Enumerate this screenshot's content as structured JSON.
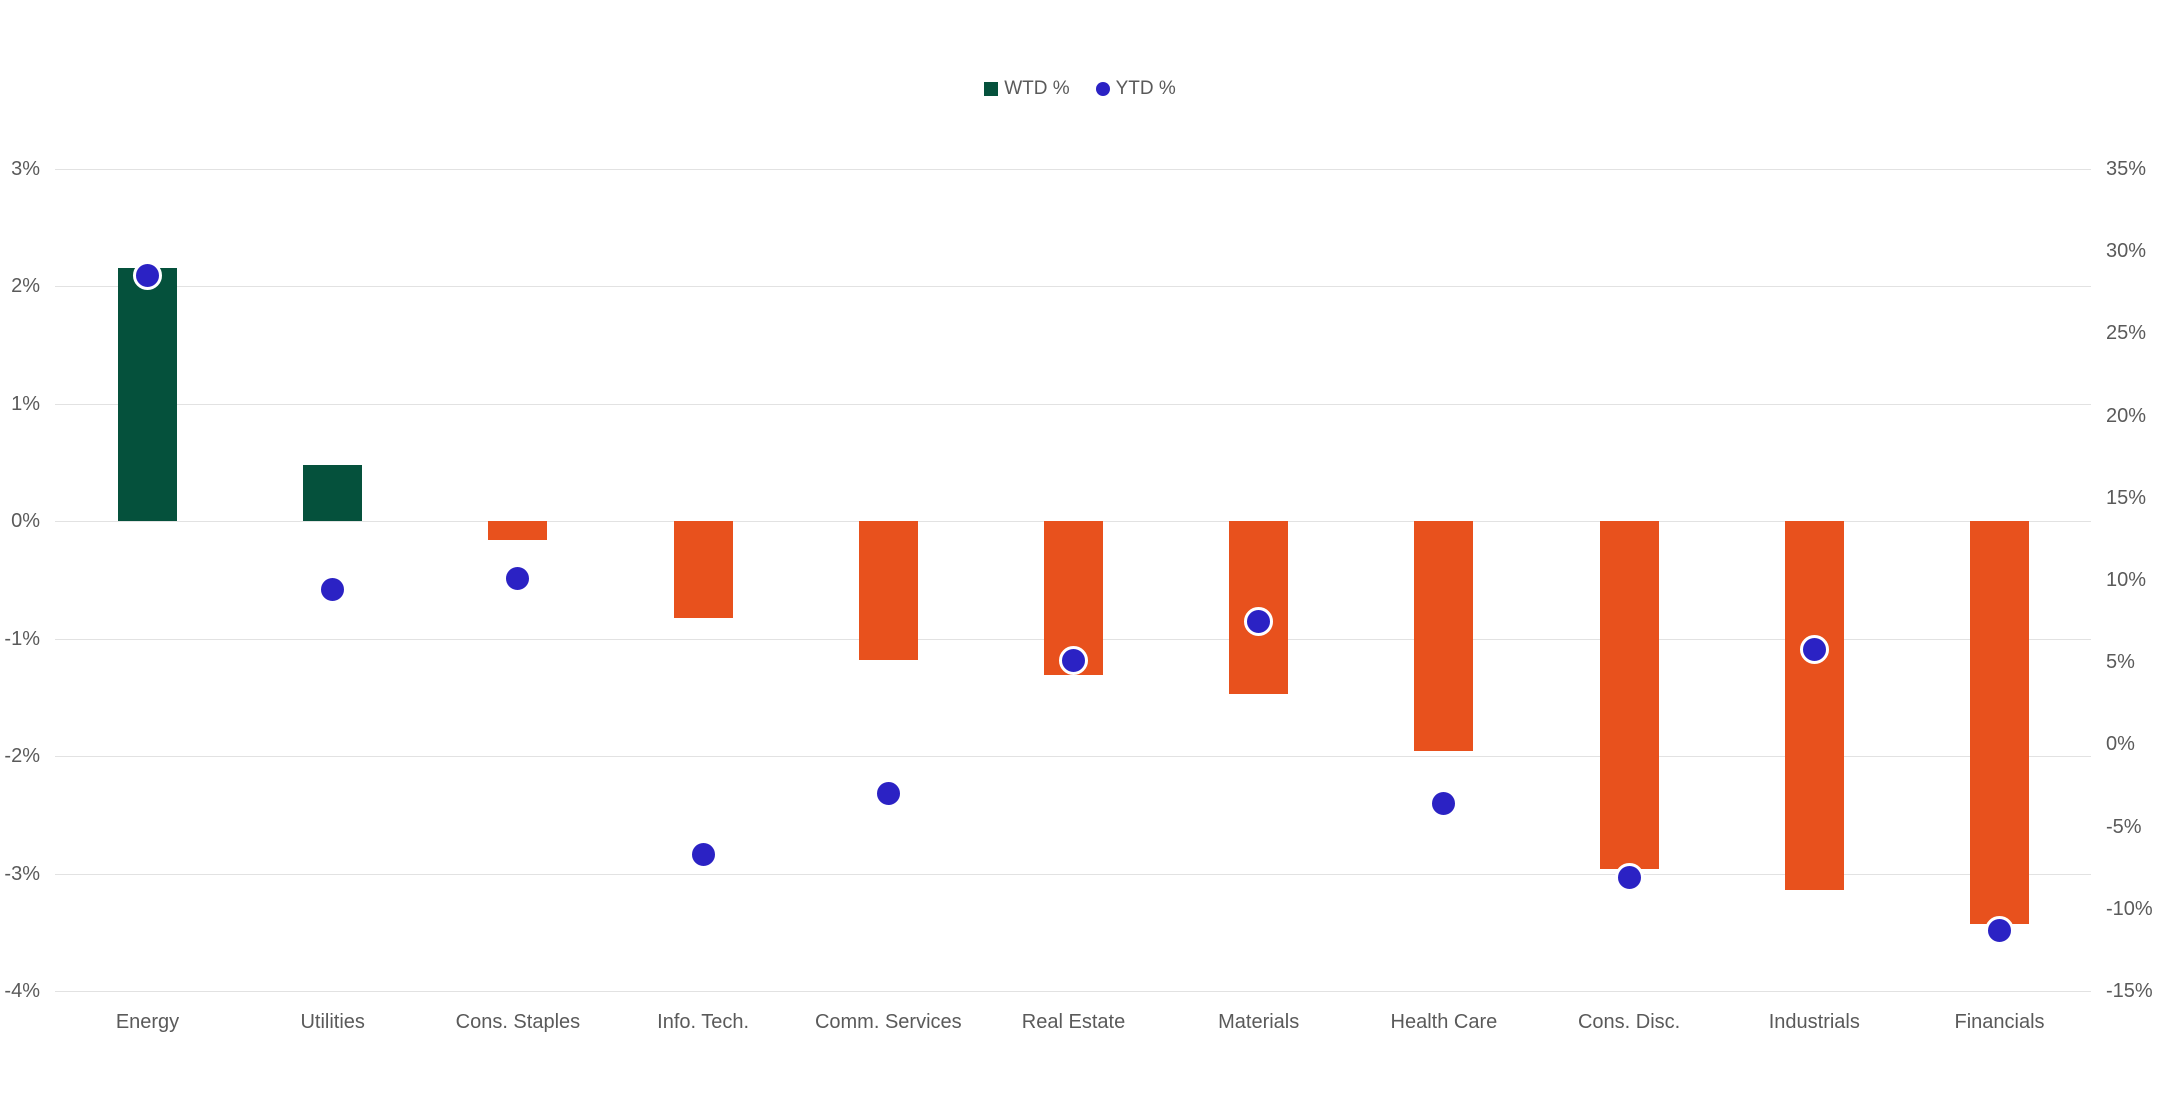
{
  "legend": {
    "wtd_label": "WTD %",
    "ytd_label": "YTD %"
  },
  "colors": {
    "positive_bar": "#05513C",
    "negative_bar": "#E8511D",
    "dot": "#2B22C4",
    "gridline": "#E2E2E2",
    "axis_text": "#5A5A5A",
    "background": "#FFFFFF"
  },
  "chart_data": {
    "type": "bar",
    "subtype": "combo-bar-and-scatter",
    "categories": [
      "Energy",
      "Utilities",
      "Cons. Staples",
      "Info. Tech.",
      "Comm. Services",
      "Real Estate",
      "Materials",
      "Health Care",
      "Cons. Disc.",
      "Industrials",
      "Financials"
    ],
    "series": [
      {
        "name": "WTD %",
        "type": "bar",
        "axis": "left",
        "color_positive": "#05513C",
        "color_negative": "#E8511D",
        "values": [
          2.16,
          0.48,
          -0.16,
          -0.82,
          -1.18,
          -1.31,
          -1.47,
          -1.96,
          -2.96,
          -3.14,
          -3.43
        ]
      },
      {
        "name": "YTD %",
        "type": "scatter",
        "axis": "right",
        "color": "#2B22C4",
        "values": [
          28.5,
          9.4,
          10.1,
          -6.7,
          -3.0,
          5.1,
          7.5,
          -3.6,
          -8.1,
          5.8,
          -11.3
        ]
      }
    ],
    "left_axis": {
      "min": -4,
      "max": 3,
      "tick_step": 1,
      "tick_labels": [
        "3%",
        "2%",
        "1%",
        "0%",
        "-1%",
        "-2%",
        "-3%",
        "-4%"
      ]
    },
    "right_axis": {
      "min": -15,
      "max": 35,
      "tick_step": 5,
      "tick_labels": [
        "35%",
        "30%",
        "25%",
        "20%",
        "15%",
        "10%",
        "5%",
        "0%",
        "-5%",
        "-10%",
        "-15%"
      ]
    },
    "title": "",
    "xlabel": "",
    "ylabel": "",
    "grid": true,
    "legend_position": "top-center"
  }
}
